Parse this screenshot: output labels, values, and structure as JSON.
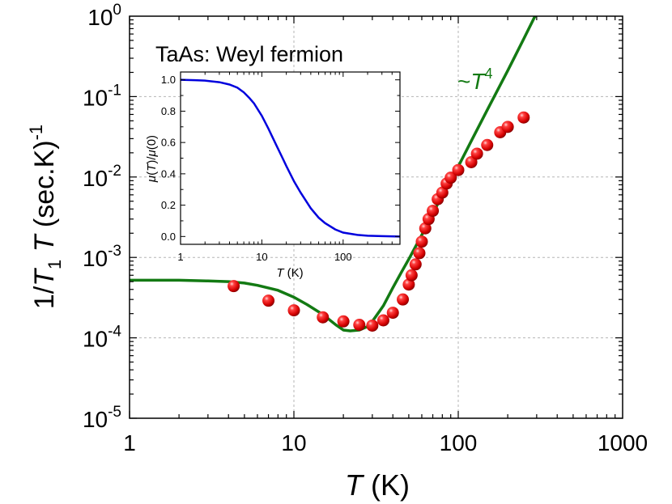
{
  "chart_data": [
    {
      "type": "scatter",
      "title": "",
      "xlabel": "T (K)",
      "ylabel": "1/T1T (sec.K)-1",
      "xlim": [
        1,
        1000
      ],
      "ylim": [
        1e-05,
        1
      ],
      "xscale": "log",
      "yscale": "log",
      "grid": true,
      "x_tick_values": [
        1,
        10,
        100,
        1000
      ],
      "x_tick_labels": [
        "1",
        "10",
        "100",
        "1000"
      ],
      "y_tick_values": [
        1e-05,
        0.0001,
        0.001,
        0.01,
        0.1,
        1
      ],
      "y_tick_exponents": [
        "-5",
        "-4",
        "-3",
        "-2",
        "-1",
        "0"
      ],
      "y_tick_base": "10",
      "label_text": "TaAs: Weyl fermion",
      "fit_label_prefix": "~",
      "fit_label_var": "T",
      "fit_label_exp": "4",
      "colors": {
        "data": "#e00000",
        "fit": "#137a13",
        "inset_line": "#0000dd"
      },
      "series": [
        {
          "kind": "points",
          "x": [
            4.3,
            7,
            10,
            15,
            20,
            25,
            30,
            35,
            40,
            46,
            50,
            52,
            55,
            58,
            60,
            63,
            66,
            70,
            75,
            80,
            85,
            90,
            100,
            120,
            130,
            150,
            180,
            200,
            250
          ],
          "y": [
            0.00044,
            0.00029,
            0.00022,
            0.00018,
            0.00016,
            0.000145,
            0.000142,
            0.000165,
            0.000205,
            0.0003,
            0.00046,
            0.0006,
            0.00082,
            0.00113,
            0.00157,
            0.0023,
            0.003,
            0.0038,
            0.0053,
            0.0064,
            0.0083,
            0.0098,
            0.0122,
            0.0153,
            0.0195,
            0.025,
            0.036,
            0.042,
            0.055
          ]
        },
        {
          "kind": "line",
          "x": [
            1,
            2,
            3,
            4,
            5,
            6,
            8,
            10,
            12,
            15,
            18,
            20,
            22,
            25,
            28,
            30,
            35,
            40,
            45,
            50,
            60,
            70,
            80,
            100,
            120,
            150,
            200,
            250,
            300
          ],
          "y": [
            0.00052,
            0.00052,
            0.00051,
            0.0005,
            0.00048,
            0.00045,
            0.00039,
            0.00032,
            0.00026,
            0.000195,
            0.000145,
            0.000125,
            0.000122,
            0.000125,
            0.000138,
            0.00016,
            0.00025,
            0.00042,
            0.00065,
            0.00095,
            0.0019,
            0.0035,
            0.006,
            0.0135,
            0.028,
            0.068,
            0.21,
            0.52,
            1.1
          ]
        }
      ]
    },
    {
      "type": "line",
      "title": "",
      "xlabel": "T (K)",
      "ylabel": "μ(T)/μ(0)",
      "xlim": [
        1,
        500
      ],
      "ylim": [
        -0.05,
        1.05
      ],
      "xscale": "log",
      "x_tick_values": [
        1,
        10,
        100
      ],
      "x_tick_labels": [
        "1",
        "10",
        "100"
      ],
      "y_tick_values": [
        0.0,
        0.2,
        0.4,
        0.6,
        0.8,
        1.0
      ],
      "y_tick_labels": [
        "0.0",
        "0.2",
        "0.4",
        "0.6",
        "0.8",
        "1.0"
      ],
      "series": [
        {
          "x": [
            1,
            1.5,
            2,
            3,
            4,
            5,
            6,
            7,
            8,
            10,
            12,
            15,
            18,
            20,
            25,
            30,
            40,
            50,
            60,
            80,
            100,
            150,
            200,
            300,
            500
          ],
          "y": [
            1.0,
            0.998,
            0.995,
            0.985,
            0.97,
            0.95,
            0.92,
            0.885,
            0.85,
            0.77,
            0.69,
            0.585,
            0.5,
            0.45,
            0.35,
            0.28,
            0.18,
            0.12,
            0.085,
            0.045,
            0.025,
            0.01,
            0.005,
            0.002,
            0.0
          ]
        }
      ]
    }
  ]
}
